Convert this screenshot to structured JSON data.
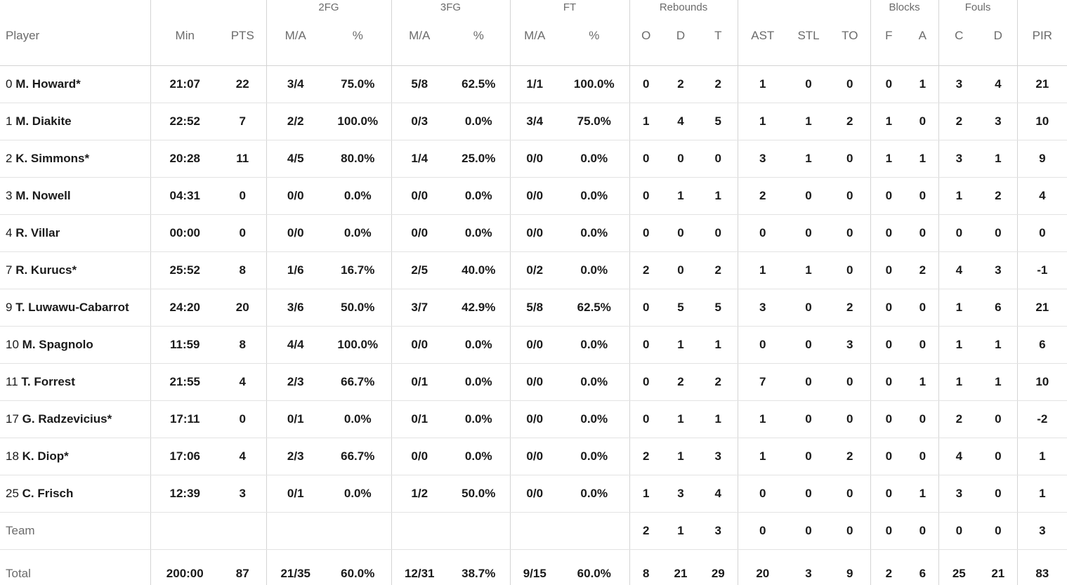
{
  "groups": {
    "fg2": "2FG",
    "fg3": "3FG",
    "ft": "FT",
    "rebounds": "Rebounds",
    "blocks": "Blocks",
    "fouls": "Fouls"
  },
  "columns": {
    "player": "Player",
    "min": "Min",
    "pts": "PTS",
    "fg2_ma": "M/A",
    "fg2_pct": "%",
    "fg3_ma": "M/A",
    "fg3_pct": "%",
    "ft_ma": "M/A",
    "ft_pct": "%",
    "reb_o": "O",
    "reb_d": "D",
    "reb_t": "T",
    "ast": "AST",
    "stl": "STL",
    "to": "TO",
    "blk_f": "F",
    "blk_a": "A",
    "foul_c": "C",
    "foul_d": "D",
    "pir": "PIR"
  },
  "rows": [
    {
      "num": "0",
      "name": "M. Howard*",
      "min": "21:07",
      "pts": "22",
      "fg2_ma": "3/4",
      "fg2_pct": "75.0%",
      "fg3_ma": "5/8",
      "fg3_pct": "62.5%",
      "ft_ma": "1/1",
      "ft_pct": "100.0%",
      "reb_o": "0",
      "reb_d": "2",
      "reb_t": "2",
      "ast": "1",
      "stl": "0",
      "to": "0",
      "blk_f": "0",
      "blk_a": "1",
      "foul_c": "3",
      "foul_d": "4",
      "pir": "21"
    },
    {
      "num": "1",
      "name": "M. Diakite",
      "min": "22:52",
      "pts": "7",
      "fg2_ma": "2/2",
      "fg2_pct": "100.0%",
      "fg3_ma": "0/3",
      "fg3_pct": "0.0%",
      "ft_ma": "3/4",
      "ft_pct": "75.0%",
      "reb_o": "1",
      "reb_d": "4",
      "reb_t": "5",
      "ast": "1",
      "stl": "1",
      "to": "2",
      "blk_f": "1",
      "blk_a": "0",
      "foul_c": "2",
      "foul_d": "3",
      "pir": "10"
    },
    {
      "num": "2",
      "name": "K. Simmons*",
      "min": "20:28",
      "pts": "11",
      "fg2_ma": "4/5",
      "fg2_pct": "80.0%",
      "fg3_ma": "1/4",
      "fg3_pct": "25.0%",
      "ft_ma": "0/0",
      "ft_pct": "0.0%",
      "reb_o": "0",
      "reb_d": "0",
      "reb_t": "0",
      "ast": "3",
      "stl": "1",
      "to": "0",
      "blk_f": "1",
      "blk_a": "1",
      "foul_c": "3",
      "foul_d": "1",
      "pir": "9"
    },
    {
      "num": "3",
      "name": "M. Nowell",
      "min": "04:31",
      "pts": "0",
      "fg2_ma": "0/0",
      "fg2_pct": "0.0%",
      "fg3_ma": "0/0",
      "fg3_pct": "0.0%",
      "ft_ma": "0/0",
      "ft_pct": "0.0%",
      "reb_o": "0",
      "reb_d": "1",
      "reb_t": "1",
      "ast": "2",
      "stl": "0",
      "to": "0",
      "blk_f": "0",
      "blk_a": "0",
      "foul_c": "1",
      "foul_d": "2",
      "pir": "4"
    },
    {
      "num": "4",
      "name": "R. Villar",
      "min": "00:00",
      "pts": "0",
      "fg2_ma": "0/0",
      "fg2_pct": "0.0%",
      "fg3_ma": "0/0",
      "fg3_pct": "0.0%",
      "ft_ma": "0/0",
      "ft_pct": "0.0%",
      "reb_o": "0",
      "reb_d": "0",
      "reb_t": "0",
      "ast": "0",
      "stl": "0",
      "to": "0",
      "blk_f": "0",
      "blk_a": "0",
      "foul_c": "0",
      "foul_d": "0",
      "pir": "0"
    },
    {
      "num": "7",
      "name": "R. Kurucs*",
      "min": "25:52",
      "pts": "8",
      "fg2_ma": "1/6",
      "fg2_pct": "16.7%",
      "fg3_ma": "2/5",
      "fg3_pct": "40.0%",
      "ft_ma": "0/2",
      "ft_pct": "0.0%",
      "reb_o": "2",
      "reb_d": "0",
      "reb_t": "2",
      "ast": "1",
      "stl": "1",
      "to": "0",
      "blk_f": "0",
      "blk_a": "2",
      "foul_c": "4",
      "foul_d": "3",
      "pir": "-1"
    },
    {
      "num": "9",
      "name": "T. Luwawu-Cabarrot",
      "min": "24:20",
      "pts": "20",
      "fg2_ma": "3/6",
      "fg2_pct": "50.0%",
      "fg3_ma": "3/7",
      "fg3_pct": "42.9%",
      "ft_ma": "5/8",
      "ft_pct": "62.5%",
      "reb_o": "0",
      "reb_d": "5",
      "reb_t": "5",
      "ast": "3",
      "stl": "0",
      "to": "2",
      "blk_f": "0",
      "blk_a": "0",
      "foul_c": "1",
      "foul_d": "6",
      "pir": "21"
    },
    {
      "num": "10",
      "name": "M. Spagnolo",
      "min": "11:59",
      "pts": "8",
      "fg2_ma": "4/4",
      "fg2_pct": "100.0%",
      "fg3_ma": "0/0",
      "fg3_pct": "0.0%",
      "ft_ma": "0/0",
      "ft_pct": "0.0%",
      "reb_o": "0",
      "reb_d": "1",
      "reb_t": "1",
      "ast": "0",
      "stl": "0",
      "to": "3",
      "blk_f": "0",
      "blk_a": "0",
      "foul_c": "1",
      "foul_d": "1",
      "pir": "6"
    },
    {
      "num": "11",
      "name": "T. Forrest",
      "min": "21:55",
      "pts": "4",
      "fg2_ma": "2/3",
      "fg2_pct": "66.7%",
      "fg3_ma": "0/1",
      "fg3_pct": "0.0%",
      "ft_ma": "0/0",
      "ft_pct": "0.0%",
      "reb_o": "0",
      "reb_d": "2",
      "reb_t": "2",
      "ast": "7",
      "stl": "0",
      "to": "0",
      "blk_f": "0",
      "blk_a": "1",
      "foul_c": "1",
      "foul_d": "1",
      "pir": "10"
    },
    {
      "num": "17",
      "name": "G. Radzevicius*",
      "min": "17:11",
      "pts": "0",
      "fg2_ma": "0/1",
      "fg2_pct": "0.0%",
      "fg3_ma": "0/1",
      "fg3_pct": "0.0%",
      "ft_ma": "0/0",
      "ft_pct": "0.0%",
      "reb_o": "0",
      "reb_d": "1",
      "reb_t": "1",
      "ast": "1",
      "stl": "0",
      "to": "0",
      "blk_f": "0",
      "blk_a": "0",
      "foul_c": "2",
      "foul_d": "0",
      "pir": "-2"
    },
    {
      "num": "18",
      "name": "K. Diop*",
      "min": "17:06",
      "pts": "4",
      "fg2_ma": "2/3",
      "fg2_pct": "66.7%",
      "fg3_ma": "0/0",
      "fg3_pct": "0.0%",
      "ft_ma": "0/0",
      "ft_pct": "0.0%",
      "reb_o": "2",
      "reb_d": "1",
      "reb_t": "3",
      "ast": "1",
      "stl": "0",
      "to": "2",
      "blk_f": "0",
      "blk_a": "0",
      "foul_c": "4",
      "foul_d": "0",
      "pir": "1"
    },
    {
      "num": "25",
      "name": "C. Frisch",
      "min": "12:39",
      "pts": "3",
      "fg2_ma": "0/1",
      "fg2_pct": "0.0%",
      "fg3_ma": "1/2",
      "fg3_pct": "50.0%",
      "ft_ma": "0/0",
      "ft_pct": "0.0%",
      "reb_o": "1",
      "reb_d": "3",
      "reb_t": "4",
      "ast": "0",
      "stl": "0",
      "to": "0",
      "blk_f": "0",
      "blk_a": "1",
      "foul_c": "3",
      "foul_d": "0",
      "pir": "1"
    }
  ],
  "team": {
    "label": "Team",
    "reb_o": "2",
    "reb_d": "1",
    "reb_t": "3",
    "ast": "0",
    "stl": "0",
    "to": "0",
    "blk_f": "0",
    "blk_a": "0",
    "foul_c": "0",
    "foul_d": "0",
    "pir": "3"
  },
  "total": {
    "label": "Total",
    "min": "200:00",
    "pts": "87",
    "fg2_ma": "21/35",
    "fg2_pct": "60.0%",
    "fg3_ma": "12/31",
    "fg3_pct": "38.7%",
    "ft_ma": "9/15",
    "ft_pct": "60.0%",
    "reb_o": "8",
    "reb_d": "21",
    "reb_t": "29",
    "ast": "20",
    "stl": "3",
    "to": "9",
    "blk_f": "2",
    "blk_a": "6",
    "foul_c": "25",
    "foul_d": "21",
    "pir": "83"
  }
}
